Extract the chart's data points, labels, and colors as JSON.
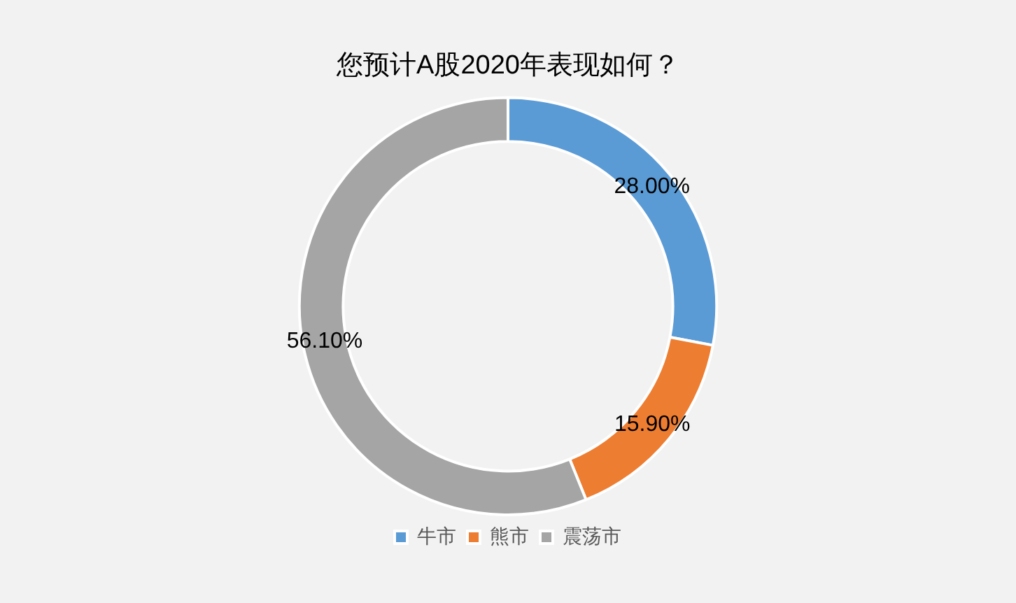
{
  "chart_data": {
    "type": "donut",
    "title": "您预计A股2020年表现如何？",
    "categories": [
      "牛市",
      "熊市",
      "震荡市"
    ],
    "values": [
      28.0,
      15.9,
      56.1
    ],
    "value_labels": [
      "28.00%",
      "15.90%",
      "56.10%"
    ],
    "colors": [
      "#5b9bd5",
      "#ed7d31",
      "#a5a5a5"
    ],
    "legend": "bottom"
  }
}
